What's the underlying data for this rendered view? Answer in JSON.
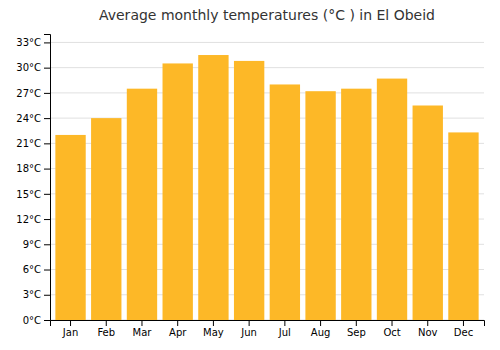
{
  "chart_data": {
    "type": "bar",
    "title": "Average monthly temperatures (°C ) in El Obeid",
    "categories": [
      "Jan",
      "Feb",
      "Mar",
      "Apr",
      "May",
      "Jun",
      "Jul",
      "Aug",
      "Sep",
      "Oct",
      "Nov",
      "Dec"
    ],
    "values": [
      22.0,
      24.0,
      27.5,
      30.5,
      31.5,
      30.8,
      28.0,
      27.2,
      27.5,
      28.7,
      25.5,
      22.3
    ],
    "color": "#FDB827",
    "ylim": [
      0,
      34
    ],
    "yticks": [
      {
        "value": 0,
        "label": "0°C"
      },
      {
        "value": 3,
        "label": "3°C"
      },
      {
        "value": 6,
        "label": "6°C"
      },
      {
        "value": 9,
        "label": "9°C"
      },
      {
        "value": 12,
        "label": "12°C"
      },
      {
        "value": 15,
        "label": "15°C"
      },
      {
        "value": 18,
        "label": "18°C"
      },
      {
        "value": 21,
        "label": "21°C"
      },
      {
        "value": 24,
        "label": "24°C"
      },
      {
        "value": 27,
        "label": "27°C"
      },
      {
        "value": 30,
        "label": "30°C"
      },
      {
        "value": 33,
        "label": "33°C"
      }
    ],
    "grid": true
  }
}
